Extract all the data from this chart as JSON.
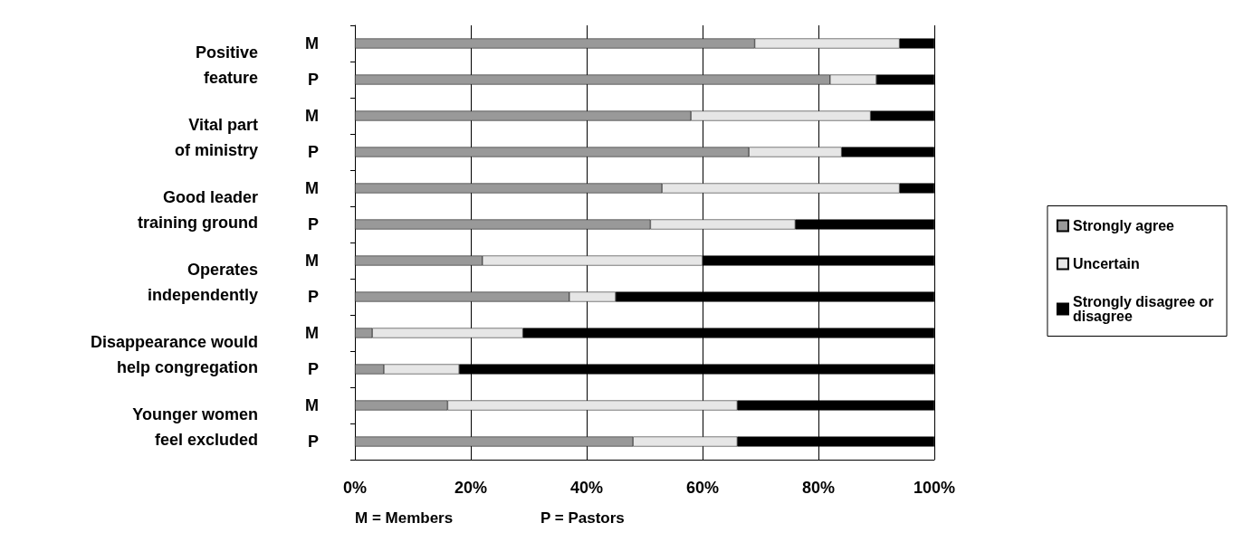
{
  "chart_data": {
    "type": "bar",
    "orientation": "horizontal",
    "stacked": true,
    "categories": [
      "M",
      "P",
      "M",
      "P",
      "M",
      "P",
      "M",
      "P",
      "M",
      "P",
      "M",
      "P"
    ],
    "series": [
      {
        "name": "Strongly agree",
        "color": "#999999",
        "values": [
          69,
          82,
          58,
          68,
          53,
          51,
          22,
          37,
          3,
          5,
          16,
          48
        ]
      },
      {
        "name": "Uncertain",
        "color": "#e6e6e6",
        "values": [
          25,
          8,
          31,
          16,
          41,
          25,
          38,
          8,
          26,
          13,
          50,
          18
        ]
      },
      {
        "name": "Strongly disagree or disagree",
        "color": "#000000",
        "values": [
          6,
          10,
          11,
          16,
          6,
          24,
          40,
          55,
          71,
          82,
          34,
          34
        ]
      }
    ],
    "xlim": [
      0,
      100
    ],
    "xticks": [
      {
        "value": 0,
        "label": "0%"
      },
      {
        "value": 20,
        "label": "20%"
      },
      {
        "value": 40,
        "label": "40%"
      },
      {
        "value": 60,
        "label": "60%"
      },
      {
        "value": 80,
        "label": "80%"
      },
      {
        "value": 100,
        "label": "100%"
      }
    ],
    "grid": "x",
    "legend": "right",
    "annotations": [
      "Positive\nfeature",
      "Vital part\nof ministry",
      "Good leader\ntraining ground",
      "Operates\nindependently",
      "Disappearance would\nhelp congregation",
      "Younger women\nfeel excluded",
      "M = Members",
      "P = Pastors"
    ]
  }
}
